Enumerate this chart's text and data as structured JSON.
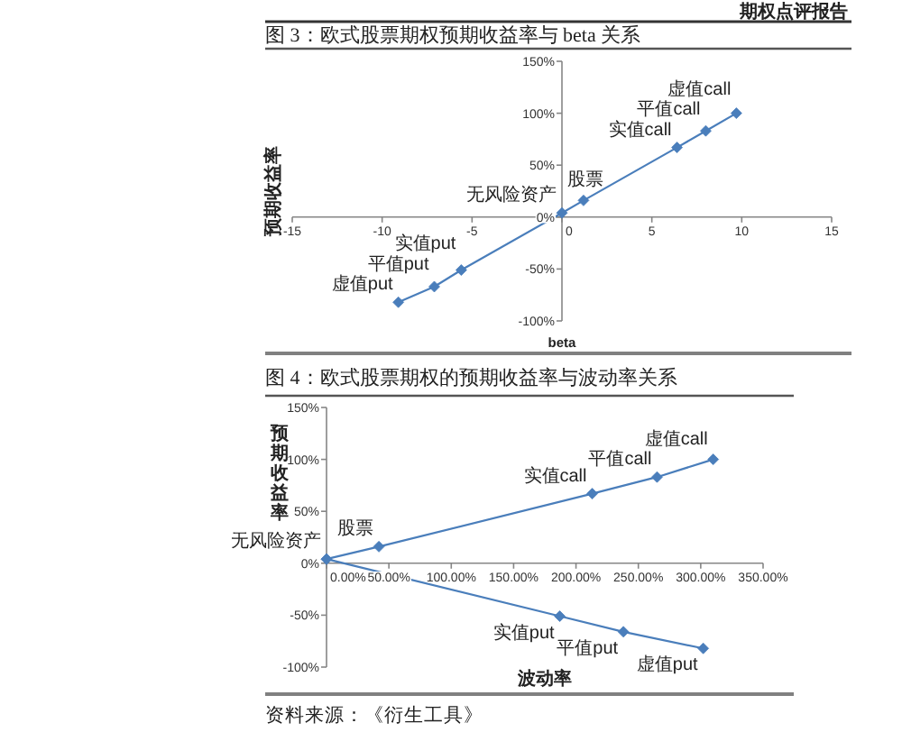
{
  "chart_data": [
    {
      "type": "line",
      "title": "图 3：欧式股票期权预期收益率与 beta 关系",
      "xlabel": "beta",
      "ylabel": "预期收益率",
      "xlim": [
        -15,
        15
      ],
      "xticks": [
        -15,
        -10,
        -5,
        0,
        5,
        10,
        15
      ],
      "ylim": [
        -100,
        150
      ],
      "yticks": [
        {
          "value": -100,
          "label": "-100%"
        },
        {
          "value": -50,
          "label": "-50%"
        },
        {
          "value": 0,
          "label": "0%"
        },
        {
          "value": 50,
          "label": "50%"
        },
        {
          "value": 100,
          "label": "100%"
        },
        {
          "value": 150,
          "label": "150%"
        }
      ],
      "marker": "diamond",
      "line_style": "solid",
      "series": [
        {
          "color": "#4a7ebb",
          "x": [
            -9.1,
            -7.1,
            -5.6,
            0,
            1.2,
            6.4,
            8.0,
            9.7
          ],
          "values": [
            -82,
            -67,
            -51,
            4,
            16,
            67,
            83,
            100
          ]
        }
      ],
      "annotations": [
        "期权点评报告",
        {
          "text": "虚值put",
          "x": -9.1,
          "y": -82
        },
        {
          "text": "平值put",
          "x": -7.1,
          "y": -67
        },
        {
          "text": "实值put",
          "x": -5.6,
          "y": -51
        },
        {
          "text": "无风险资产",
          "x": 0,
          "y": 4
        },
        {
          "text": "股票",
          "x": 1.2,
          "y": 16
        },
        {
          "text": "实值call",
          "x": 6.4,
          "y": 67
        },
        {
          "text": "平值call",
          "x": 8.0,
          "y": 83
        },
        {
          "text": "虚值call",
          "x": 9.7,
          "y": 100
        }
      ]
    },
    {
      "type": "line",
      "title": "图 4：欧式股票期权的预期收益率与波动率关系",
      "xlabel": "波动率",
      "ylabel": "预期收益率",
      "xlim": [
        0,
        350
      ],
      "xticks": [
        {
          "value": 0,
          "label": "0.00%"
        },
        {
          "value": 50,
          "label": "50.00%"
        },
        {
          "value": 100,
          "label": "100.00%"
        },
        {
          "value": 150,
          "label": "150.00%"
        },
        {
          "value": 200,
          "label": "200.00%"
        },
        {
          "value": 250,
          "label": "250.00%"
        },
        {
          "value": 300,
          "label": "300.00%"
        },
        {
          "value": 350,
          "label": "350.00%"
        }
      ],
      "ylim": [
        -100,
        150
      ],
      "yticks": [
        {
          "value": -100,
          "label": "-100%"
        },
        {
          "value": -50,
          "label": "-50%"
        },
        {
          "value": 0,
          "label": "0%"
        },
        {
          "value": 50,
          "label": "50%"
        },
        {
          "value": 100,
          "label": "100%"
        },
        {
          "value": 150,
          "label": "150%"
        }
      ],
      "marker": "diamond",
      "line_style": "solid",
      "series": [
        {
          "color": "#4a7ebb",
          "x": [
            0,
            42,
            213,
            265,
            310
          ],
          "values": [
            4,
            16,
            67,
            83,
            100
          ]
        },
        {
          "color": "#4a7ebb",
          "x": [
            0,
            187,
            238,
            302
          ],
          "values": [
            4,
            -51,
            -66,
            -82
          ]
        }
      ],
      "annotations": [
        {
          "text": "无风险资产",
          "x": 0,
          "y": 4
        },
        {
          "text": "股票",
          "x": 42,
          "y": 16
        },
        {
          "text": "实值call",
          "x": 213,
          "y": 67
        },
        {
          "text": "平值call",
          "x": 265,
          "y": 83
        },
        {
          "text": "虚值call",
          "x": 310,
          "y": 100
        },
        {
          "text": "实值put",
          "x": 187,
          "y": -51
        },
        {
          "text": "平值put",
          "x": 238,
          "y": -66
        },
        {
          "text": "虚值put",
          "x": 302,
          "y": -82
        },
        "资料来源：《衍生工具》"
      ]
    }
  ]
}
